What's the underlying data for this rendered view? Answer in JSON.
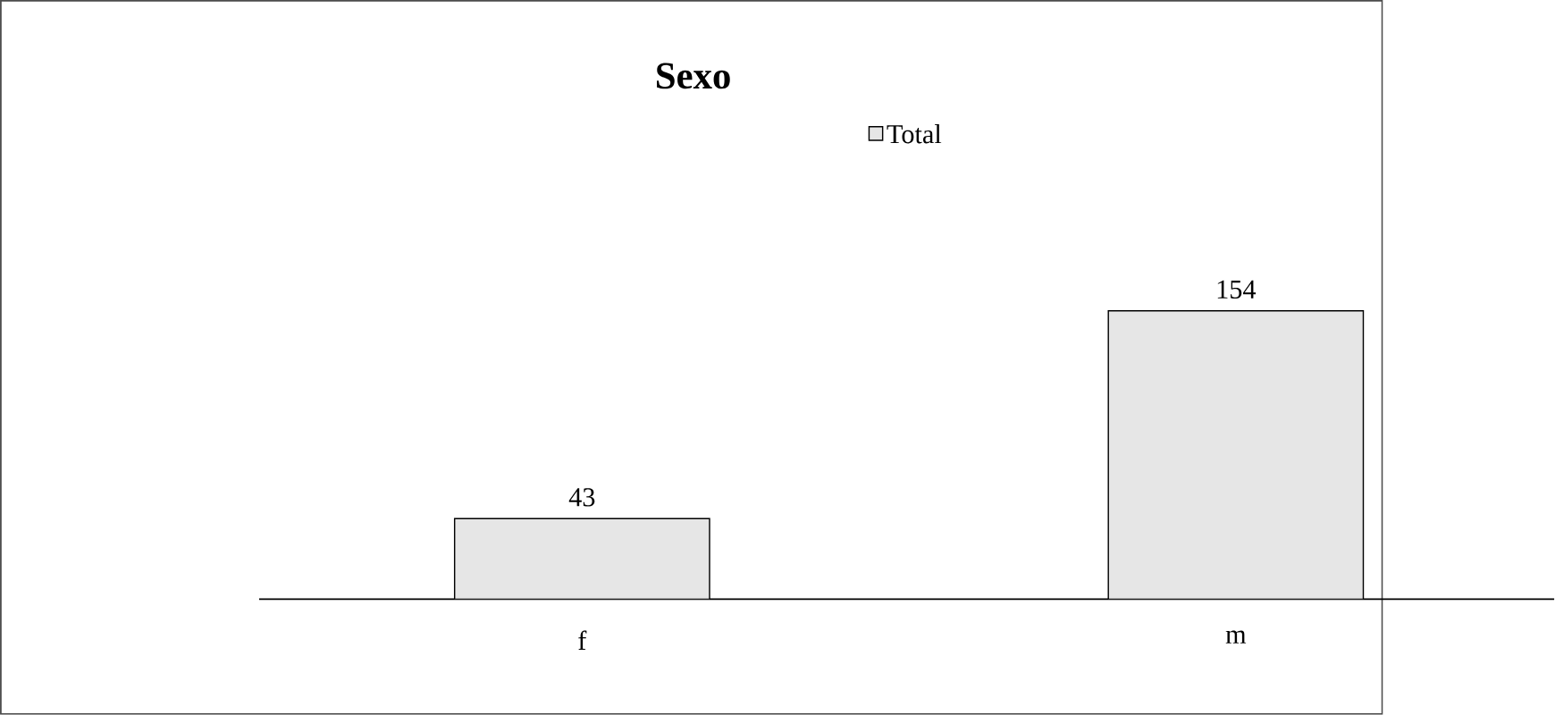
{
  "chart_data": {
    "type": "bar",
    "title": "Sexo",
    "categories": [
      "f",
      "m"
    ],
    "series": [
      {
        "name": "Total",
        "color": "#e6e6e6",
        "values": [
          43,
          154
        ]
      }
    ],
    "data_labels": true,
    "legend": "top"
  }
}
